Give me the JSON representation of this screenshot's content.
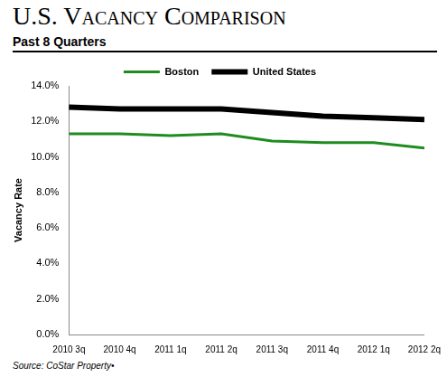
{
  "chart_data": {
    "type": "line",
    "title": "U.S. Vacancy Comparison",
    "subtitle": "Past 8 Quarters",
    "y_label": "Vacancy Rate",
    "source": "Source: CoStar Property•",
    "categories": [
      "2010 3q",
      "2010 4q",
      "2011 1q",
      "2011 2q",
      "2011 3q",
      "2011 4q",
      "2012 1q",
      "2012 2q"
    ],
    "series": [
      {
        "name": "Boston",
        "color": "#1e8c1e",
        "values": [
          11.3,
          11.3,
          11.2,
          11.3,
          10.9,
          10.8,
          10.8,
          10.5
        ]
      },
      {
        "name": "United States",
        "color": "#000000",
        "values": [
          12.8,
          12.7,
          12.7,
          12.7,
          12.5,
          12.3,
          12.2,
          12.1
        ]
      }
    ],
    "ylim": [
      0,
      14
    ],
    "yticks": [
      {
        "value": 0,
        "label": "0.0%"
      },
      {
        "value": 2,
        "label": "2.0%"
      },
      {
        "value": 4,
        "label": "4.0%"
      },
      {
        "value": 6,
        "label": "6.0%"
      },
      {
        "value": 8,
        "label": "8.0%"
      },
      {
        "value": 10,
        "label": "10.0%"
      },
      {
        "value": 12,
        "label": "12.0%"
      },
      {
        "value": 14,
        "label": "14.0%"
      }
    ],
    "grid": false,
    "legend": "top"
  }
}
